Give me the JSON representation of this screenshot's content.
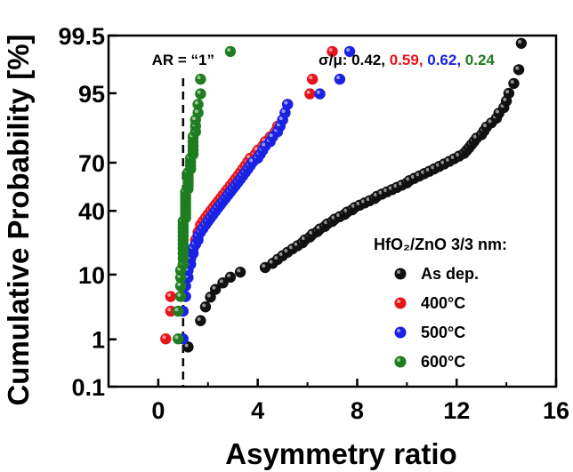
{
  "chart_data": {
    "type": "scatter",
    "title": "",
    "xlabel": "Asymmetry ratio",
    "ylabel": "Cumulative Probability [%]",
    "xlim": [
      -2,
      16
    ],
    "x_ticks": [
      0,
      4,
      8,
      12,
      16
    ],
    "x_tick_labels": [
      "0",
      "4",
      "8",
      "12",
      "16"
    ],
    "y_scale": "probability",
    "ylim": [
      0.1,
      99.5
    ],
    "y_ticks": [
      0.1,
      1,
      10,
      40,
      70,
      95,
      99.5
    ],
    "y_tick_labels": [
      "0.1",
      "1",
      "10",
      "40",
      "70",
      "95",
      "99.5"
    ],
    "grid": false,
    "annotation": {
      "line_x": 1,
      "label": "AR = “1”"
    },
    "sigma_mu": {
      "prefix": "σ/μ:",
      "values": [
        {
          "text": "0.42,",
          "color": "#000000"
        },
        {
          "text": "0.59,",
          "color": "#e8141c"
        },
        {
          "text": "0.62,",
          "color": "#1a22e6"
        },
        {
          "text": "0.24",
          "color": "#1e7d1e"
        }
      ]
    },
    "legend": {
      "title": "HfO₂/ZnO 3/3 nm:",
      "placement": "lower-right"
    },
    "series": [
      {
        "name": "As dep.",
        "color": "#111111",
        "sorted_values": [
          1.2,
          1.7,
          1.9,
          2.1,
          2.3,
          2.6,
          2.9,
          3.3,
          4.3,
          4.6,
          4.8,
          5.0,
          5.2,
          5.4,
          5.6,
          5.8,
          5.9,
          6.1,
          6.2,
          6.4,
          6.5,
          6.7,
          6.8,
          7.0,
          7.1,
          7.3,
          7.5,
          7.6,
          7.8,
          7.9,
          8.1,
          8.3,
          8.5,
          8.7,
          8.8,
          9.0,
          9.2,
          9.4,
          9.6,
          9.8,
          10.0,
          10.1,
          10.3,
          10.5,
          10.7,
          10.9,
          11.1,
          11.3,
          11.5,
          11.7,
          11.9,
          12.1,
          12.3,
          12.4,
          12.5,
          12.6,
          12.7,
          12.8,
          13.0,
          13.1,
          13.2,
          13.4,
          13.6,
          13.7,
          13.9,
          14.0,
          14.1,
          14.3,
          14.5,
          14.6
        ]
      },
      {
        "name": "400°C",
        "color": "#e8141c",
        "sorted_values": [
          0.3,
          0.5,
          0.5,
          1.0,
          1.1,
          1.2,
          1.3,
          1.3,
          1.4,
          1.4,
          1.5,
          1.5,
          1.6,
          1.6,
          1.7,
          1.7,
          1.8,
          1.9,
          2.0,
          2.1,
          2.2,
          2.3,
          2.4,
          2.5,
          2.6,
          2.7,
          2.8,
          2.9,
          3.0,
          3.1,
          3.2,
          3.3,
          3.4,
          3.5,
          3.6,
          3.7,
          3.9,
          4.0,
          4.2,
          4.3,
          4.5,
          4.7,
          4.8,
          5.0,
          5.1,
          5.2,
          6.1,
          6.2,
          7.0
        ]
      },
      {
        "name": "500°C",
        "color": "#1a22e6",
        "sorted_values": [
          1.0,
          1.0,
          1.1,
          1.1,
          1.2,
          1.2,
          1.3,
          1.3,
          1.4,
          1.4,
          1.5,
          1.6,
          1.6,
          1.7,
          1.8,
          1.9,
          2.0,
          2.1,
          2.2,
          2.3,
          2.4,
          2.5,
          2.6,
          2.7,
          2.8,
          2.9,
          3.0,
          3.1,
          3.2,
          3.3,
          3.4,
          3.5,
          3.6,
          3.7,
          3.8,
          4.0,
          4.1,
          4.2,
          4.3,
          4.5,
          4.6,
          4.8,
          4.9,
          5.0,
          5.1,
          5.2,
          6.5,
          7.3,
          7.7
        ]
      },
      {
        "name": "600°C",
        "color": "#1e7d1e",
        "sorted_values": [
          0.8,
          0.8,
          0.9,
          0.9,
          0.9,
          0.9,
          1.0,
          1.0,
          1.0,
          1.0,
          1.0,
          1.0,
          1.0,
          1.0,
          1.0,
          1.0,
          1.0,
          1.1,
          1.1,
          1.1,
          1.1,
          1.1,
          1.1,
          1.1,
          1.1,
          1.1,
          1.2,
          1.2,
          1.2,
          1.2,
          1.2,
          1.2,
          1.3,
          1.3,
          1.3,
          1.3,
          1.4,
          1.4,
          1.4,
          1.4,
          1.4,
          1.5,
          1.5,
          1.5,
          1.6,
          1.6,
          1.7,
          1.7,
          2.9
        ]
      }
    ]
  }
}
